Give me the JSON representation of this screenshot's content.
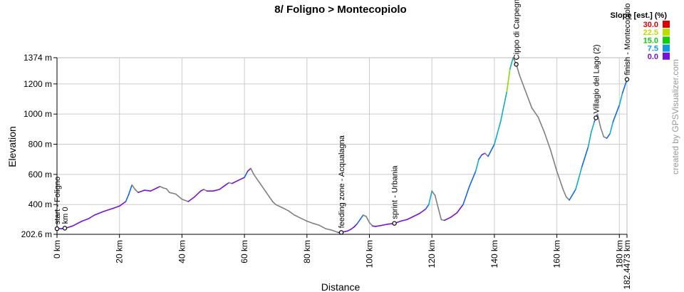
{
  "chart_data": {
    "type": "line",
    "title": "8/ Foligno > Montecopiolo",
    "xlabel": "Distance",
    "ylabel": "Elevation",
    "xlim": [
      0,
      182.4473
    ],
    "ylim": [
      202.6,
      1374
    ],
    "x_ticks": [
      {
        "value": 0,
        "label": "0 km"
      },
      {
        "value": 20,
        "label": "20 km"
      },
      {
        "value": 40,
        "label": "40 km"
      },
      {
        "value": 60,
        "label": "60 km"
      },
      {
        "value": 80,
        "label": "80 km"
      },
      {
        "value": 100,
        "label": "100 km"
      },
      {
        "value": 120,
        "label": "120 km"
      },
      {
        "value": 140,
        "label": "140 km"
      },
      {
        "value": 160,
        "label": "160 km"
      },
      {
        "value": 180,
        "label": "180 km"
      },
      {
        "value": 182.4473,
        "label": "182.4473 km"
      }
    ],
    "y_ticks": [
      {
        "value": 202.6,
        "label": "202.6 m"
      },
      {
        "value": 400,
        "label": "400 m"
      },
      {
        "value": 600,
        "label": "600 m"
      },
      {
        "value": 800,
        "label": "800 m"
      },
      {
        "value": 1000,
        "label": "1000 m"
      },
      {
        "value": 1200,
        "label": "1200 m"
      },
      {
        "value": 1374,
        "label": "1374 m"
      }
    ],
    "grid": true,
    "series": [
      {
        "x": [
          0,
          1.5,
          3,
          5,
          8,
          10,
          12,
          15,
          18,
          20,
          22,
          23,
          24,
          25,
          26,
          28,
          30,
          32,
          33,
          34,
          35,
          36,
          38,
          40,
          42,
          44,
          46,
          47,
          48,
          50,
          52,
          54,
          55,
          56,
          58,
          60,
          61,
          62,
          63,
          65,
          67,
          69,
          70,
          72,
          74,
          76,
          78,
          80,
          82,
          84,
          86,
          88,
          90,
          91,
          92,
          93,
          94,
          95,
          96,
          97,
          98,
          99,
          100,
          101,
          102,
          104,
          106,
          108,
          110,
          112,
          114,
          116,
          118,
          119,
          120,
          121,
          122,
          123,
          124,
          126,
          128,
          130,
          132,
          134,
          135,
          136,
          137,
          138,
          140,
          142,
          144,
          145,
          146,
          147,
          148,
          150,
          152,
          154,
          156,
          158,
          160,
          162,
          163,
          164,
          166,
          168,
          170,
          171,
          172,
          173,
          174,
          175,
          176,
          177,
          178,
          180,
          181,
          182.4473
        ],
        "y": [
          240,
          240,
          245,
          258,
          290,
          305,
          330,
          355,
          375,
          390,
          420,
          470,
          530,
          500,
          480,
          495,
          490,
          510,
          520,
          510,
          505,
          480,
          470,
          435,
          420,
          450,
          490,
          500,
          490,
          490,
          500,
          530,
          545,
          540,
          560,
          580,
          620,
          640,
          600,
          540,
          480,
          420,
          400,
          380,
          360,
          330,
          310,
          290,
          275,
          262,
          240,
          230,
          215,
          215,
          220,
          225,
          235,
          250,
          270,
          300,
          330,
          320,
          280,
          258,
          255,
          262,
          270,
          275,
          290,
          300,
          320,
          340,
          370,
          400,
          490,
          460,
          380,
          300,
          295,
          315,
          345,
          400,
          520,
          620,
          700,
          730,
          740,
          720,
          800,
          950,
          1150,
          1300,
          1374,
          1330,
          1260,
          1150,
          1040,
          980,
          880,
          760,
          620,
          500,
          450,
          430,
          500,
          650,
          780,
          880,
          950,
          1000,
          910,
          850,
          840,
          870,
          950,
          1060,
          1140,
          1230
        ]
      }
    ],
    "slope_legend": {
      "title": "Slope [est.] (%)",
      "items": [
        {
          "label": "30.0",
          "color": "#dd0000"
        },
        {
          "label": "22.5",
          "color": "#bbdd00"
        },
        {
          "label": "15.0",
          "color": "#11cc11"
        },
        {
          "label": "7.5",
          "color": "#1199dd"
        },
        {
          "label": "0.0",
          "color": "#7711dd"
        }
      ]
    },
    "waypoints": [
      {
        "x": 0,
        "label": "start - Foligno"
      },
      {
        "x": 2.5,
        "label": "km 0"
      },
      {
        "x": 91,
        "label": "feeding zone - Acqualagna"
      },
      {
        "x": 108,
        "label": "sprint - Urbania"
      },
      {
        "x": 147,
        "label": "Cippo di Carpegna"
      },
      {
        "x": 172.5,
        "label": "Villagio del Lago (2)"
      },
      {
        "x": 182.4473,
        "label": "finish - Montecopiolo"
      }
    ],
    "credit": "created by GPSVisualizer.com"
  }
}
